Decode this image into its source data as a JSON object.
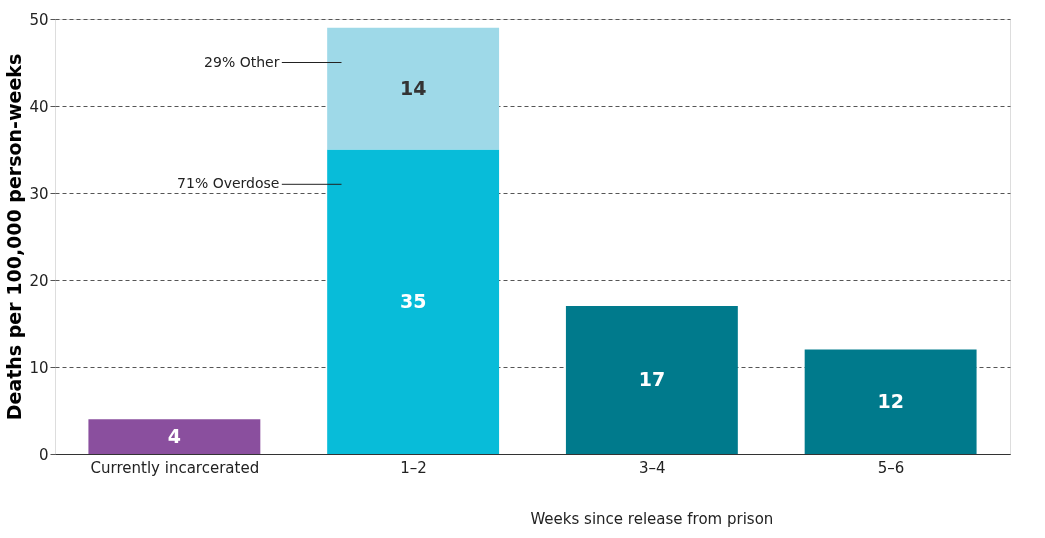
{
  "chart_data": {
    "type": "bar",
    "stacked": true,
    "ylabel": "Deaths per 100,000 person-weeks",
    "xlabel": "Weeks since release from prison",
    "categories": [
      "Currently incarcerated",
      "1–2",
      "3–4",
      "5–6"
    ],
    "series": [
      {
        "colors": [
          "#8a4f9e",
          "#08bcd9",
          "#007a8c",
          "#007a8c"
        ],
        "values": [
          4,
          35,
          17,
          12
        ]
      },
      {
        "color": "#9ed9e8",
        "values": [
          null,
          14,
          null,
          null
        ]
      }
    ],
    "ylim": [
      0,
      50
    ],
    "yticks": [
      0,
      10,
      20,
      30,
      40,
      50
    ],
    "grid": "y",
    "data_labels": true,
    "annotations": [
      "71% Overdose",
      "29% Other"
    ]
  }
}
